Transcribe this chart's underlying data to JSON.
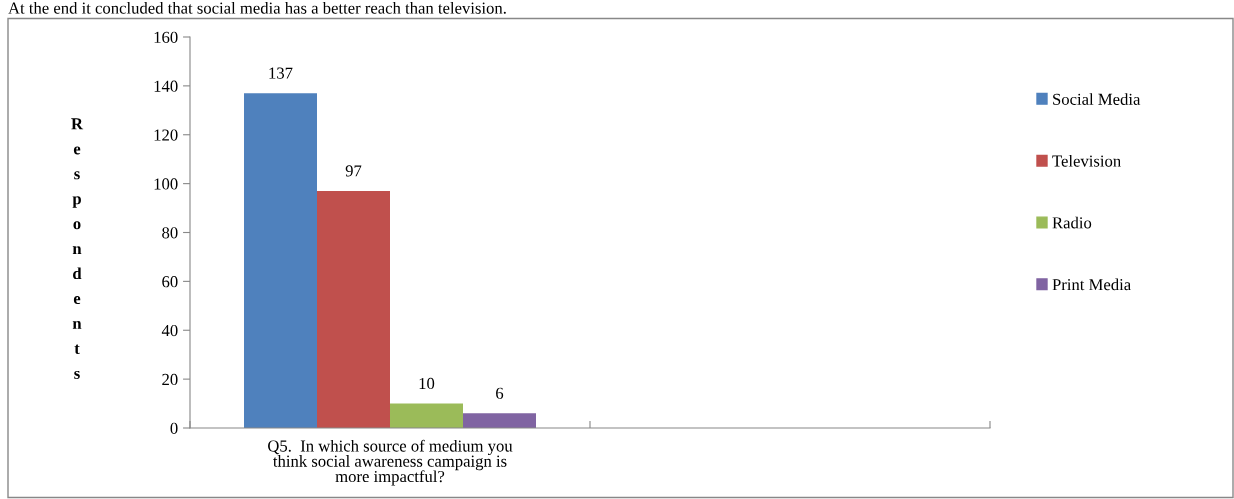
{
  "chart_data": {
    "type": "bar",
    "annotations": [
      "At the end it concluded that social media has a better reach than television."
    ],
    "ylabel": "Respondents",
    "categories": [
      "Q5.  In which source of medium you\nthink social awareness campaign is\nmore impactful?",
      null
    ],
    "series": [
      {
        "name": "Social Media",
        "color": "#4f81bd",
        "values": [
          137,
          null
        ]
      },
      {
        "name": "Television",
        "color": "#c0504d",
        "values": [
          97,
          null
        ]
      },
      {
        "name": "Radio",
        "color": "#9bbb59",
        "values": [
          10,
          null
        ]
      },
      {
        "name": "Print Media",
        "color": "#8064a2",
        "values": [
          6,
          null
        ]
      }
    ],
    "ylim": [
      0,
      160
    ],
    "yticks": [
      0,
      20,
      40,
      60,
      80,
      100,
      120,
      140,
      160
    ],
    "data_labels": true,
    "grid": false,
    "legend": "right"
  }
}
